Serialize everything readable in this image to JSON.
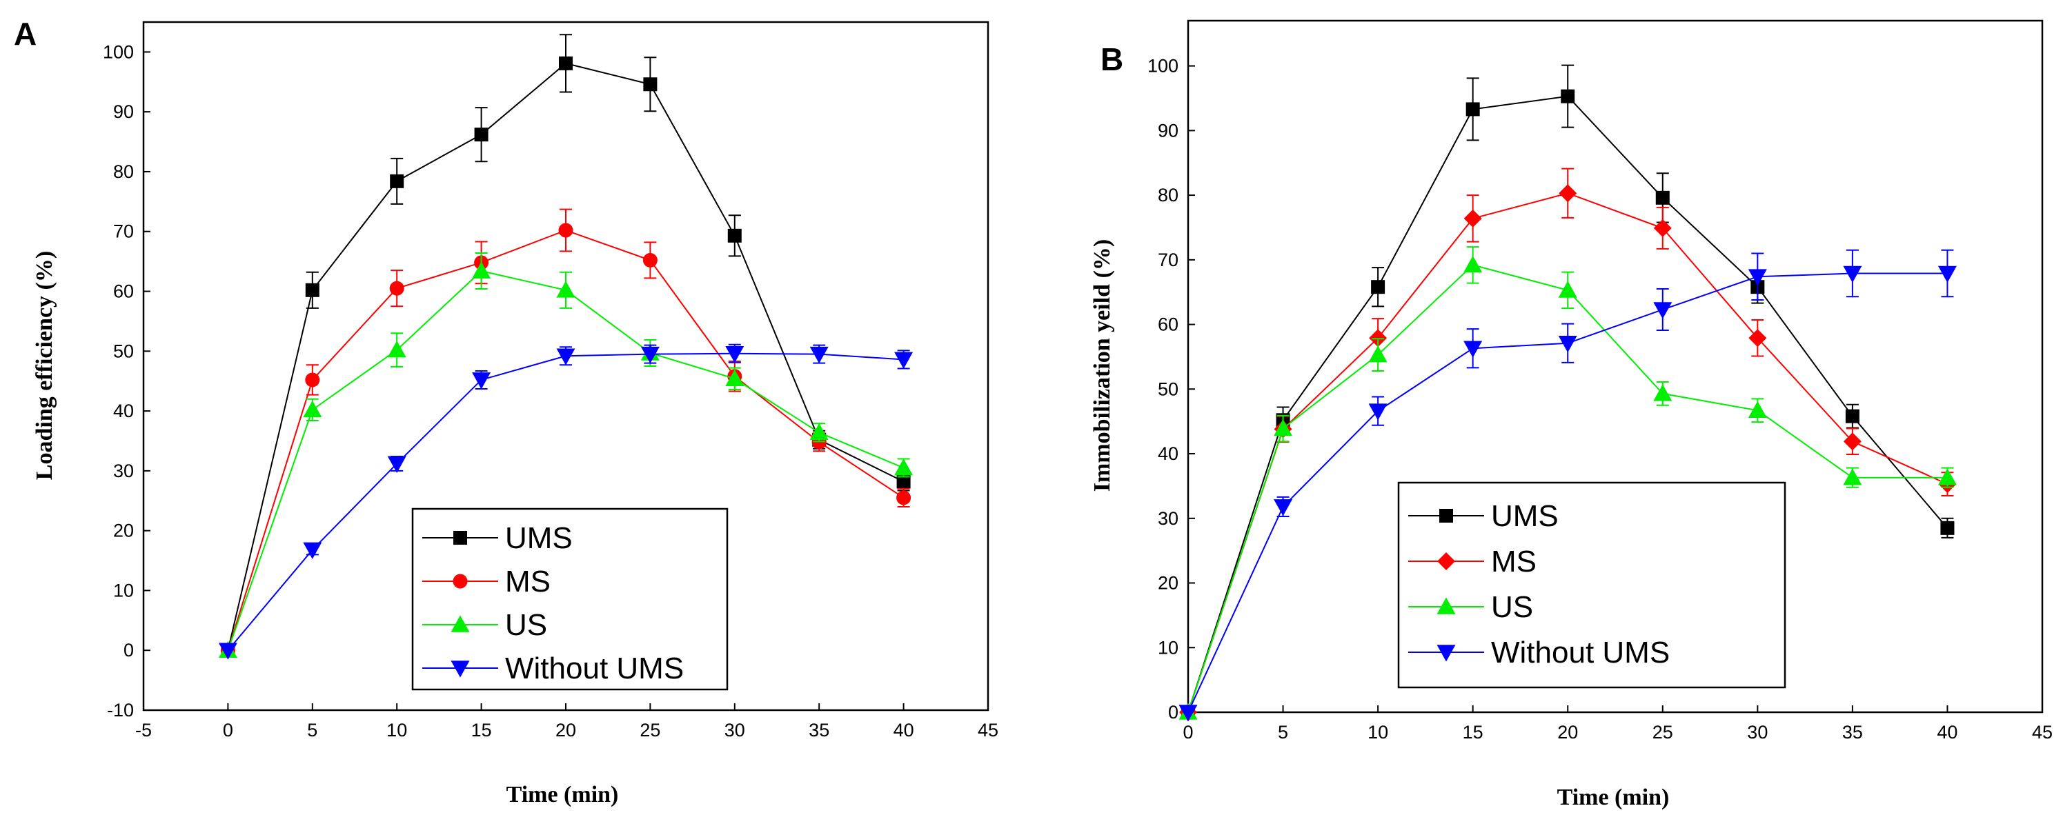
{
  "chart_data": [
    {
      "panel": "A",
      "type": "line",
      "xlabel": "Time (min)",
      "ylabel": "Loading efficiency (%)",
      "xlim": [
        -5,
        45
      ],
      "ylim": [
        -10,
        105
      ],
      "xticks": [
        -5,
        0,
        5,
        10,
        15,
        20,
        25,
        30,
        35,
        40,
        45
      ],
      "yticks": [
        -10,
        0,
        10,
        20,
        30,
        40,
        50,
        60,
        70,
        80,
        90,
        100
      ],
      "legend_position": "bottom-center",
      "x": [
        0,
        5,
        10,
        15,
        20,
        25,
        30,
        35,
        40
      ],
      "series": [
        {
          "name": "UMS",
          "color": "#000000",
          "marker": "square",
          "values": [
            0,
            60.2,
            78.4,
            86.2,
            98.1,
            94.6,
            69.3,
            35.2,
            28.2
          ],
          "errors": [
            0,
            3,
            3.8,
            4.5,
            4.8,
            4.5,
            3.4,
            1.5,
            1.5
          ]
        },
        {
          "name": "MS",
          "color": "#ff0000",
          "marker": "circle",
          "values": [
            0,
            45.2,
            60.5,
            64.8,
            70.2,
            65.2,
            45.8,
            34.8,
            25.5
          ],
          "errors": [
            0,
            2.5,
            3,
            3.5,
            3.5,
            3,
            2.5,
            1.5,
            1.5
          ]
        },
        {
          "name": "US",
          "color": "#00ee00",
          "marker": "triangle-up",
          "values": [
            0,
            40.2,
            50.2,
            63.4,
            60.2,
            49.7,
            45.4,
            36.4,
            30.5
          ],
          "errors": [
            0,
            1.8,
            2.8,
            3,
            3,
            2.2,
            1.8,
            1.5,
            1.5
          ]
        },
        {
          "name": "Without UMS",
          "color": "#0000ff",
          "marker": "triangle-down",
          "values": [
            0,
            16.8,
            31.2,
            45.2,
            49.2,
            49.5,
            49.6,
            49.5,
            48.6
          ],
          "errors": [
            0,
            0.8,
            1.2,
            1.5,
            1.5,
            1.5,
            1.5,
            1.5,
            1.5
          ]
        }
      ]
    },
    {
      "panel": "B",
      "type": "line",
      "xlabel": "Time (min)",
      "ylabel": "Immobilization yeild (%)",
      "xlim": [
        0,
        45
      ],
      "ylim": [
        0,
        107
      ],
      "xticks": [
        0,
        5,
        10,
        15,
        20,
        25,
        30,
        35,
        40,
        45
      ],
      "yticks": [
        0,
        10,
        20,
        30,
        40,
        50,
        60,
        70,
        80,
        90,
        100
      ],
      "legend_position": "bottom-center",
      "x": [
        0,
        5,
        10,
        15,
        20,
        25,
        30,
        35,
        40
      ],
      "series": [
        {
          "name": "UMS",
          "color": "#000000",
          "marker": "square",
          "values": [
            0,
            45.2,
            65.8,
            93.3,
            95.3,
            79.6,
            65.8,
            45.8,
            28.5
          ],
          "errors": [
            0,
            2,
            3,
            4.8,
            4.8,
            3.8,
            2.5,
            1.8,
            1.5
          ]
        },
        {
          "name": "MS",
          "color": "#ff0000",
          "marker": "diamond",
          "values": [
            0,
            43.8,
            57.9,
            76.4,
            80.3,
            74.9,
            57.9,
            41.9,
            35.3
          ],
          "errors": [
            0,
            2,
            3,
            3.6,
            3.8,
            3.2,
            2.8,
            2,
            1.8
          ]
        },
        {
          "name": "US",
          "color": "#00ee00",
          "marker": "triangle-up",
          "values": [
            0,
            43.9,
            55.3,
            69.2,
            65.3,
            49.3,
            46.7,
            36.3,
            36.3
          ],
          "errors": [
            0,
            2,
            2.5,
            2.8,
            2.8,
            1.8,
            1.8,
            1.5,
            1.5
          ]
        },
        {
          "name": "Without UMS",
          "color": "#0000ff",
          "marker": "triangle-down",
          "values": [
            0,
            31.8,
            46.6,
            56.3,
            57.1,
            62.3,
            67.4,
            67.9,
            67.9
          ],
          "errors": [
            0,
            1.5,
            2.2,
            3,
            3,
            3.2,
            3.6,
            3.6,
            3.6
          ]
        }
      ]
    }
  ]
}
